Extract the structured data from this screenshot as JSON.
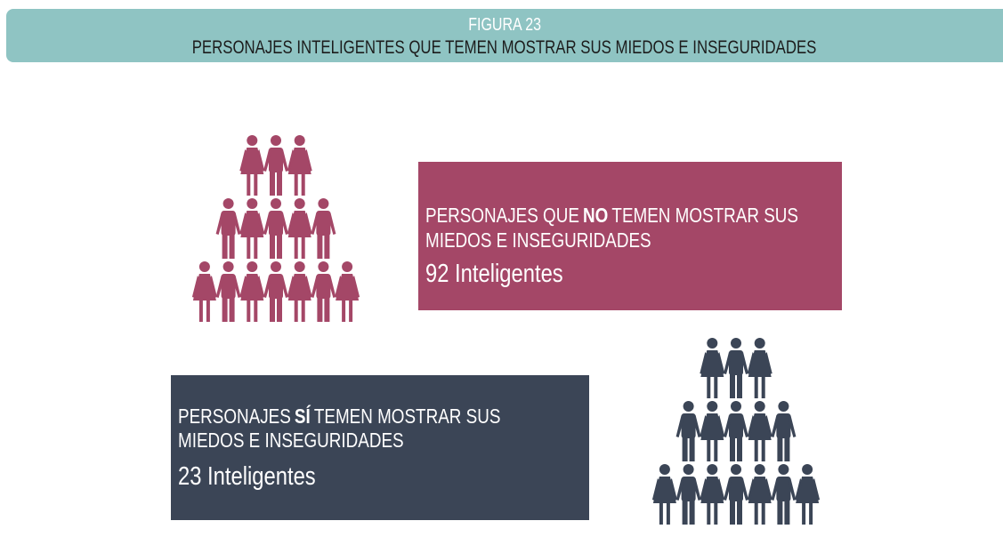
{
  "header": {
    "figure": "FIGURA 23",
    "title": "PERSONAJES INTELIGENTES QUE TEMEN MOSTRAR SUS MIEDOS E INSEGURIDADES"
  },
  "panels": [
    {
      "line1": [
        "PERSONAJES QUE",
        "NO",
        "TEMEN MOSTRAR SUS"
      ],
      "line2": "MIEDOS E INSEGURIDADES",
      "count": "92 Inteligentes"
    },
    {
      "line1": [
        "PERSONAJES",
        "SÍ",
        "TEMEN MOSTRAR SUS"
      ],
      "line2": "MIEDOS E INSEGURIDADES",
      "count": "23 Inteligentes"
    }
  ]
}
